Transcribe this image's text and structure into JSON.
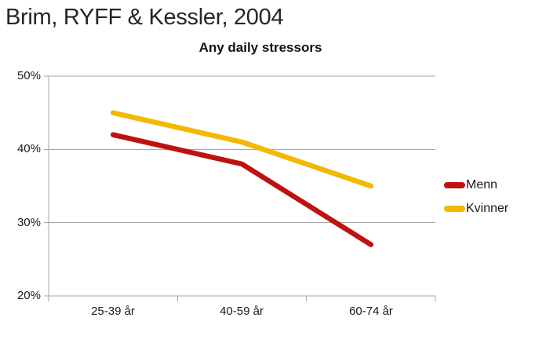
{
  "page_title": "Brim, RYFF & Kessler, 2004",
  "chart_data": {
    "type": "line",
    "title": "Any daily stressors",
    "categories": [
      "25-39 år",
      "40-59 år",
      "60-74 år"
    ],
    "series": [
      {
        "name": "Menn",
        "color": "#be1211",
        "values": [
          42,
          38,
          27
        ]
      },
      {
        "name": "Kvinner",
        "color": "#f3b800",
        "values": [
          45,
          41,
          35
        ]
      }
    ],
    "y_ticks": [
      "50%",
      "40%",
      "30%",
      "20%"
    ],
    "y_tick_values": [
      50,
      40,
      30,
      20
    ],
    "ylim": [
      20,
      50
    ],
    "grid": true,
    "legend_position": "right",
    "axis_color": "#a6a6a6"
  }
}
